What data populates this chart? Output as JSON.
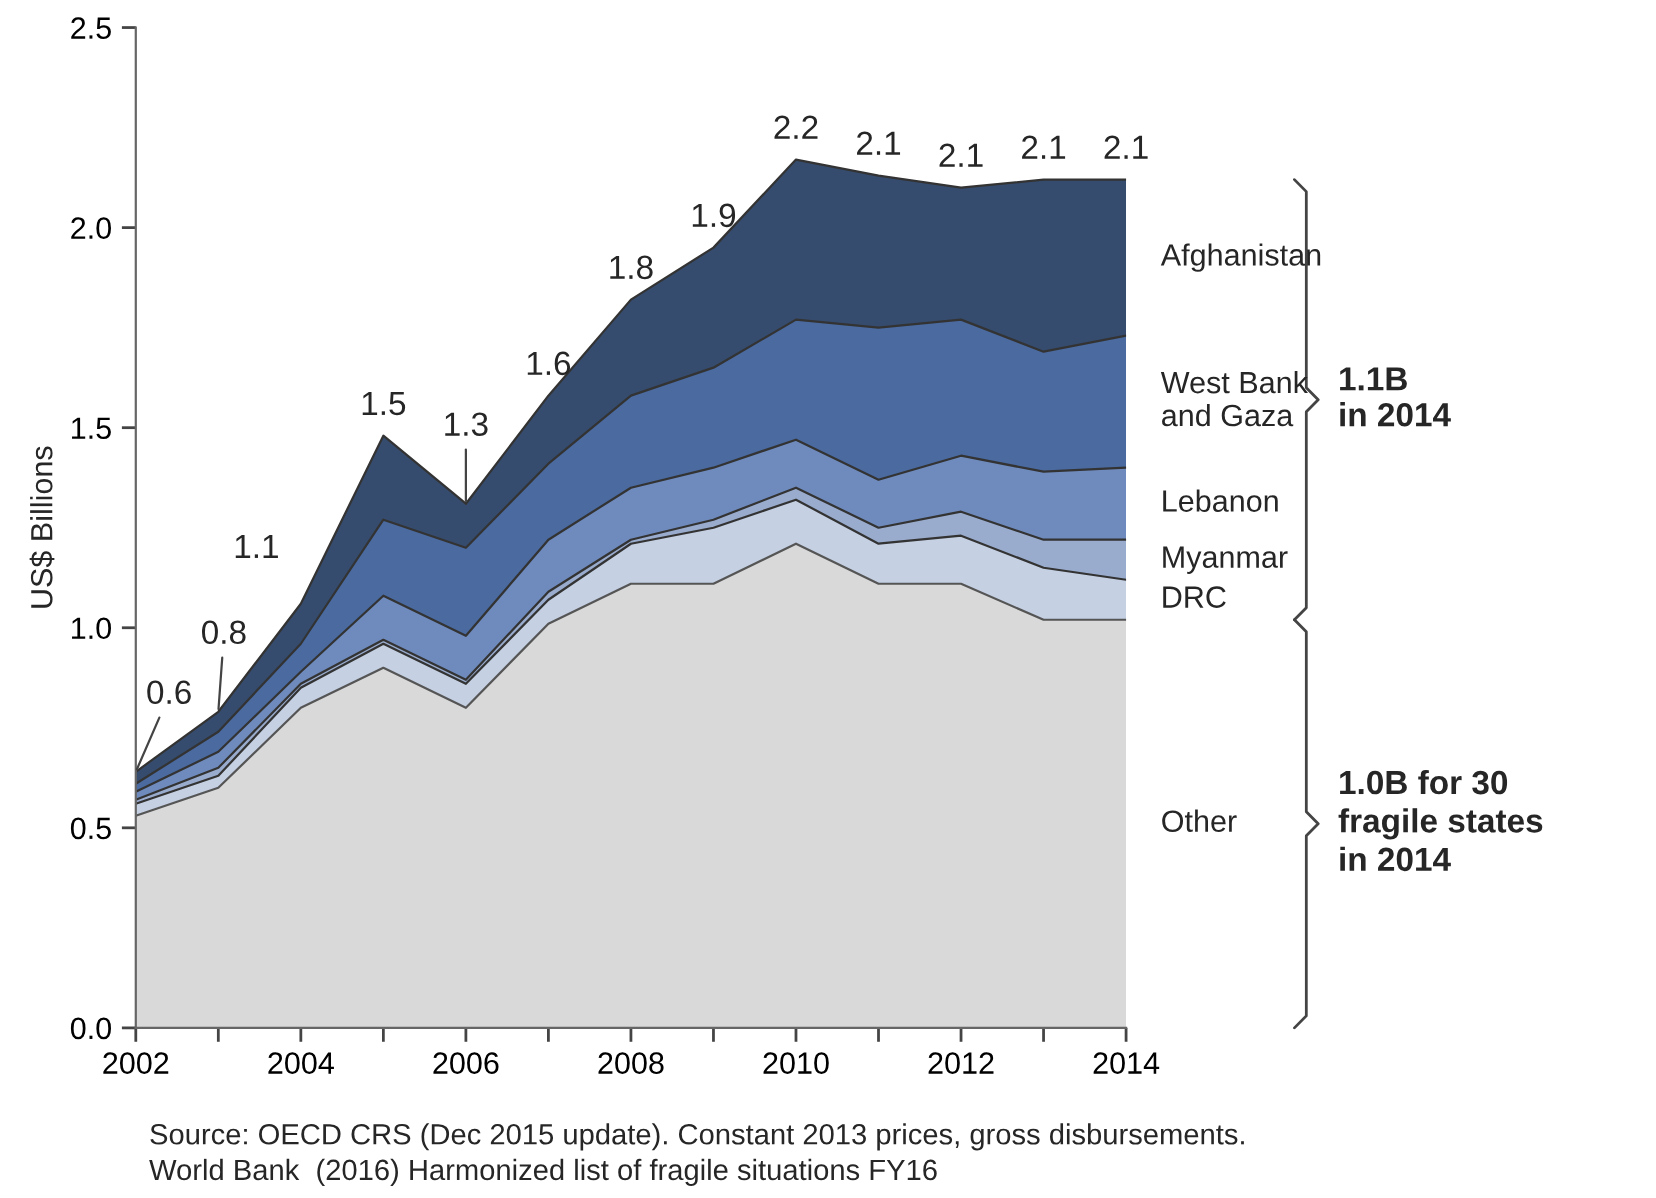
{
  "chart_data": {
    "type": "area",
    "stacked": true,
    "ylabel": "US$ Billions",
    "x": [
      2002,
      2003,
      2004,
      2005,
      2006,
      2007,
      2008,
      2009,
      2010,
      2011,
      2012,
      2013,
      2014
    ],
    "series": [
      {
        "name": "Other",
        "color": "#d9d9d9",
        "values": [
          0.53,
          0.6,
          0.8,
          0.9,
          0.8,
          1.01,
          1.11,
          1.11,
          1.21,
          1.11,
          1.11,
          1.02,
          1.02
        ]
      },
      {
        "name": "DRC",
        "color": "#c5d0e3",
        "values": [
          0.03,
          0.03,
          0.05,
          0.06,
          0.06,
          0.06,
          0.1,
          0.14,
          0.11,
          0.1,
          0.12,
          0.13,
          0.1
        ]
      },
      {
        "name": "Myanmar",
        "color": "#9aaccd",
        "values": [
          0.01,
          0.02,
          0.01,
          0.01,
          0.01,
          0.02,
          0.01,
          0.02,
          0.03,
          0.04,
          0.06,
          0.07,
          0.1
        ]
      },
      {
        "name": "Lebanon",
        "color": "#6f8bbd",
        "values": [
          0.02,
          0.04,
          0.03,
          0.11,
          0.11,
          0.13,
          0.13,
          0.13,
          0.12,
          0.12,
          0.14,
          0.17,
          0.18
        ]
      },
      {
        "name": "West Bank\nand Gaza",
        "color": "#4a6aa0",
        "values": [
          0.02,
          0.05,
          0.07,
          0.19,
          0.22,
          0.19,
          0.23,
          0.25,
          0.3,
          0.38,
          0.34,
          0.3,
          0.33
        ]
      },
      {
        "name": "Afghanistan",
        "color": "#364c6e",
        "values": [
          0.03,
          0.05,
          0.1,
          0.21,
          0.11,
          0.17,
          0.24,
          0.3,
          0.4,
          0.38,
          0.33,
          0.43,
          0.39
        ]
      }
    ],
    "xlim": [
      2002,
      2014
    ],
    "xticks": [
      2002,
      {
        "value": 2003,
        "label": null
      },
      2004,
      {
        "value": 2005,
        "label": null
      },
      2006,
      {
        "value": 2007,
        "label": null
      },
      2008,
      {
        "value": 2009,
        "label": null
      },
      2010,
      {
        "value": 2011,
        "label": null
      },
      2012,
      {
        "value": 2013,
        "label": null
      },
      2014
    ],
    "ylim": [
      0,
      2.5
    ],
    "yticks": [
      {
        "value": 0,
        "label": "0.0"
      },
      {
        "value": 0.5,
        "label": "0.5"
      },
      {
        "value": 1.0,
        "label": "1.0"
      },
      {
        "value": 1.5,
        "label": "1.5"
      },
      {
        "value": 2.0,
        "label": "2.0"
      },
      {
        "value": 2.5,
        "label": "2.5"
      }
    ],
    "grid": false,
    "legend": false,
    "annotations": [
      {
        "text": "0.6",
        "x": 2002,
        "y": 0.64
      },
      {
        "text": "0.8",
        "x": 2003,
        "y": 0.79
      },
      {
        "text": "1.1",
        "x": 2004,
        "y": 1.06
      },
      {
        "text": "1.5",
        "x": 2005,
        "y": 1.48
      },
      {
        "text": "1.3",
        "x": 2006,
        "y": 1.31
      },
      {
        "text": "1.6",
        "x": 2007,
        "y": 1.58
      },
      {
        "text": "1.8",
        "x": 2008,
        "y": 1.82
      },
      {
        "text": "1.9",
        "x": 2009,
        "y": 1.95
      },
      {
        "text": "2.2",
        "x": 2010,
        "y": 2.17
      },
      {
        "text": "2.1",
        "x": 2011,
        "y": 2.13
      },
      {
        "text": "2.1",
        "x": 2012,
        "y": 2.1
      },
      {
        "text": "2.1",
        "x": 2013,
        "y": 2.12
      },
      {
        "text": "2.1",
        "x": 2014,
        "y": 2.12
      },
      "1.1B\nin 2014",
      "1.0B for 30\nfragile states\nin 2014",
      "Source: OECD CRS (Dec 2015 update). Constant 2013 prices, gross disbursements.\nWorld Bank  (2016) Harmonized list of fragile situations FY16"
    ]
  }
}
